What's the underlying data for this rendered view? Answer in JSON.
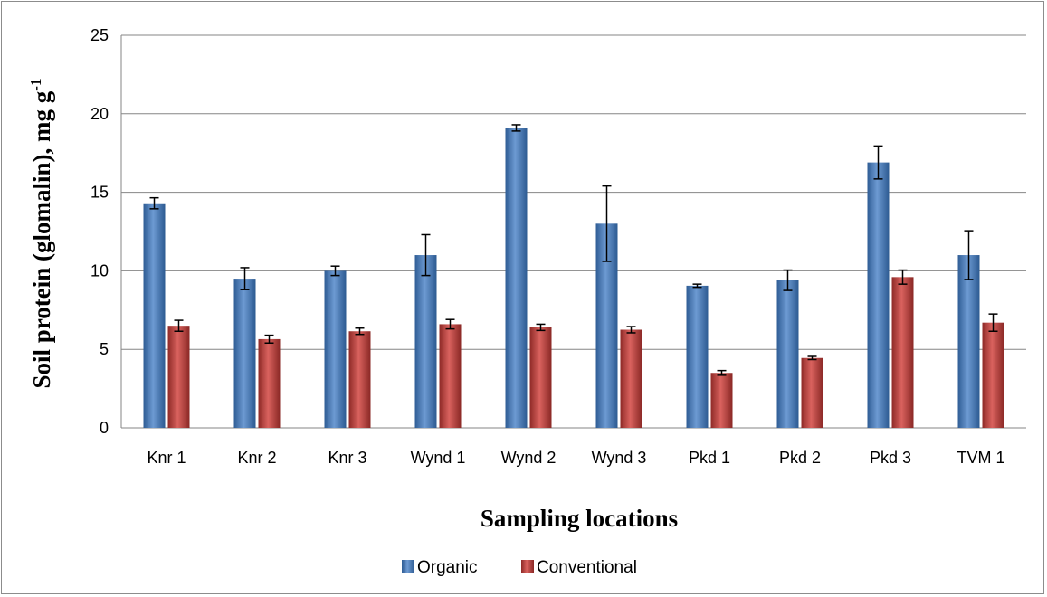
{
  "chart_data": {
    "type": "bar",
    "title": "",
    "xlabel": "Sampling locations",
    "ylabel": "Soil protein (glomalin), mg g-1",
    "ylabel_parts": {
      "main": "Soil protein (glomalin), mg g",
      "superscript": "-1"
    },
    "ylim": [
      0,
      25
    ],
    "yticks": [
      0,
      5,
      10,
      15,
      20,
      25
    ],
    "grid": true,
    "legend_position": "bottom",
    "categories": [
      "Knr 1",
      "Knr 2",
      "Knr 3",
      "Wynd 1",
      "Wynd 2",
      "Wynd 3",
      "Pkd 1",
      "Pkd 2",
      "Pkd 3",
      "TVM 1"
    ],
    "series": [
      {
        "name": "Organic",
        "color": "#4a7ebb",
        "values": [
          14.3,
          9.5,
          10.0,
          11.0,
          19.1,
          13.0,
          9.05,
          9.4,
          16.9,
          11.0
        ],
        "errors": [
          0.35,
          0.7,
          0.3,
          1.3,
          0.2,
          2.4,
          0.1,
          0.65,
          1.05,
          1.55
        ]
      },
      {
        "name": "Conventional",
        "color": "#c0504d",
        "values": [
          6.5,
          5.65,
          6.15,
          6.6,
          6.4,
          6.25,
          3.5,
          4.45,
          9.6,
          6.7
        ],
        "errors": [
          0.35,
          0.25,
          0.2,
          0.3,
          0.2,
          0.2,
          0.15,
          0.1,
          0.45,
          0.55
        ]
      }
    ]
  }
}
